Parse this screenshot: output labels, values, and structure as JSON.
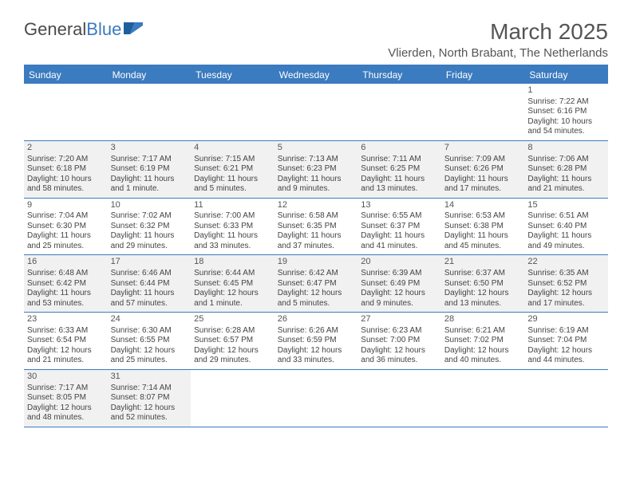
{
  "logo": {
    "part1": "General",
    "part2": "Blue"
  },
  "title": "March 2025",
  "location": "Vlierden, North Brabant, The Netherlands",
  "day_headers": [
    "Sunday",
    "Monday",
    "Tuesday",
    "Wednesday",
    "Thursday",
    "Friday",
    "Saturday"
  ],
  "colors": {
    "accent": "#3b7bbf",
    "alt_bg": "#f1f1f1"
  },
  "weeks": [
    [
      {
        "empty": true
      },
      {
        "empty": true
      },
      {
        "empty": true
      },
      {
        "empty": true
      },
      {
        "empty": true
      },
      {
        "empty": true
      },
      {
        "n": "1",
        "sr": "Sunrise: 7:22 AM",
        "ss": "Sunset: 6:16 PM",
        "dl1": "Daylight: 10 hours",
        "dl2": "and 54 minutes."
      }
    ],
    [
      {
        "n": "2",
        "sr": "Sunrise: 7:20 AM",
        "ss": "Sunset: 6:18 PM",
        "dl1": "Daylight: 10 hours",
        "dl2": "and 58 minutes."
      },
      {
        "n": "3",
        "sr": "Sunrise: 7:17 AM",
        "ss": "Sunset: 6:19 PM",
        "dl1": "Daylight: 11 hours",
        "dl2": "and 1 minute."
      },
      {
        "n": "4",
        "sr": "Sunrise: 7:15 AM",
        "ss": "Sunset: 6:21 PM",
        "dl1": "Daylight: 11 hours",
        "dl2": "and 5 minutes."
      },
      {
        "n": "5",
        "sr": "Sunrise: 7:13 AM",
        "ss": "Sunset: 6:23 PM",
        "dl1": "Daylight: 11 hours",
        "dl2": "and 9 minutes."
      },
      {
        "n": "6",
        "sr": "Sunrise: 7:11 AM",
        "ss": "Sunset: 6:25 PM",
        "dl1": "Daylight: 11 hours",
        "dl2": "and 13 minutes."
      },
      {
        "n": "7",
        "sr": "Sunrise: 7:09 AM",
        "ss": "Sunset: 6:26 PM",
        "dl1": "Daylight: 11 hours",
        "dl2": "and 17 minutes."
      },
      {
        "n": "8",
        "sr": "Sunrise: 7:06 AM",
        "ss": "Sunset: 6:28 PM",
        "dl1": "Daylight: 11 hours",
        "dl2": "and 21 minutes."
      }
    ],
    [
      {
        "n": "9",
        "sr": "Sunrise: 7:04 AM",
        "ss": "Sunset: 6:30 PM",
        "dl1": "Daylight: 11 hours",
        "dl2": "and 25 minutes."
      },
      {
        "n": "10",
        "sr": "Sunrise: 7:02 AM",
        "ss": "Sunset: 6:32 PM",
        "dl1": "Daylight: 11 hours",
        "dl2": "and 29 minutes."
      },
      {
        "n": "11",
        "sr": "Sunrise: 7:00 AM",
        "ss": "Sunset: 6:33 PM",
        "dl1": "Daylight: 11 hours",
        "dl2": "and 33 minutes."
      },
      {
        "n": "12",
        "sr": "Sunrise: 6:58 AM",
        "ss": "Sunset: 6:35 PM",
        "dl1": "Daylight: 11 hours",
        "dl2": "and 37 minutes."
      },
      {
        "n": "13",
        "sr": "Sunrise: 6:55 AM",
        "ss": "Sunset: 6:37 PM",
        "dl1": "Daylight: 11 hours",
        "dl2": "and 41 minutes."
      },
      {
        "n": "14",
        "sr": "Sunrise: 6:53 AM",
        "ss": "Sunset: 6:38 PM",
        "dl1": "Daylight: 11 hours",
        "dl2": "and 45 minutes."
      },
      {
        "n": "15",
        "sr": "Sunrise: 6:51 AM",
        "ss": "Sunset: 6:40 PM",
        "dl1": "Daylight: 11 hours",
        "dl2": "and 49 minutes."
      }
    ],
    [
      {
        "n": "16",
        "sr": "Sunrise: 6:48 AM",
        "ss": "Sunset: 6:42 PM",
        "dl1": "Daylight: 11 hours",
        "dl2": "and 53 minutes."
      },
      {
        "n": "17",
        "sr": "Sunrise: 6:46 AM",
        "ss": "Sunset: 6:44 PM",
        "dl1": "Daylight: 11 hours",
        "dl2": "and 57 minutes."
      },
      {
        "n": "18",
        "sr": "Sunrise: 6:44 AM",
        "ss": "Sunset: 6:45 PM",
        "dl1": "Daylight: 12 hours",
        "dl2": "and 1 minute."
      },
      {
        "n": "19",
        "sr": "Sunrise: 6:42 AM",
        "ss": "Sunset: 6:47 PM",
        "dl1": "Daylight: 12 hours",
        "dl2": "and 5 minutes."
      },
      {
        "n": "20",
        "sr": "Sunrise: 6:39 AM",
        "ss": "Sunset: 6:49 PM",
        "dl1": "Daylight: 12 hours",
        "dl2": "and 9 minutes."
      },
      {
        "n": "21",
        "sr": "Sunrise: 6:37 AM",
        "ss": "Sunset: 6:50 PM",
        "dl1": "Daylight: 12 hours",
        "dl2": "and 13 minutes."
      },
      {
        "n": "22",
        "sr": "Sunrise: 6:35 AM",
        "ss": "Sunset: 6:52 PM",
        "dl1": "Daylight: 12 hours",
        "dl2": "and 17 minutes."
      }
    ],
    [
      {
        "n": "23",
        "sr": "Sunrise: 6:33 AM",
        "ss": "Sunset: 6:54 PM",
        "dl1": "Daylight: 12 hours",
        "dl2": "and 21 minutes."
      },
      {
        "n": "24",
        "sr": "Sunrise: 6:30 AM",
        "ss": "Sunset: 6:55 PM",
        "dl1": "Daylight: 12 hours",
        "dl2": "and 25 minutes."
      },
      {
        "n": "25",
        "sr": "Sunrise: 6:28 AM",
        "ss": "Sunset: 6:57 PM",
        "dl1": "Daylight: 12 hours",
        "dl2": "and 29 minutes."
      },
      {
        "n": "26",
        "sr": "Sunrise: 6:26 AM",
        "ss": "Sunset: 6:59 PM",
        "dl1": "Daylight: 12 hours",
        "dl2": "and 33 minutes."
      },
      {
        "n": "27",
        "sr": "Sunrise: 6:23 AM",
        "ss": "Sunset: 7:00 PM",
        "dl1": "Daylight: 12 hours",
        "dl2": "and 36 minutes."
      },
      {
        "n": "28",
        "sr": "Sunrise: 6:21 AM",
        "ss": "Sunset: 7:02 PM",
        "dl1": "Daylight: 12 hours",
        "dl2": "and 40 minutes."
      },
      {
        "n": "29",
        "sr": "Sunrise: 6:19 AM",
        "ss": "Sunset: 7:04 PM",
        "dl1": "Daylight: 12 hours",
        "dl2": "and 44 minutes."
      }
    ],
    [
      {
        "n": "30",
        "sr": "Sunrise: 7:17 AM",
        "ss": "Sunset: 8:05 PM",
        "dl1": "Daylight: 12 hours",
        "dl2": "and 48 minutes."
      },
      {
        "n": "31",
        "sr": "Sunrise: 7:14 AM",
        "ss": "Sunset: 8:07 PM",
        "dl1": "Daylight: 12 hours",
        "dl2": "and 52 minutes."
      },
      {
        "empty": true
      },
      {
        "empty": true
      },
      {
        "empty": true
      },
      {
        "empty": true
      },
      {
        "empty": true
      }
    ]
  ]
}
